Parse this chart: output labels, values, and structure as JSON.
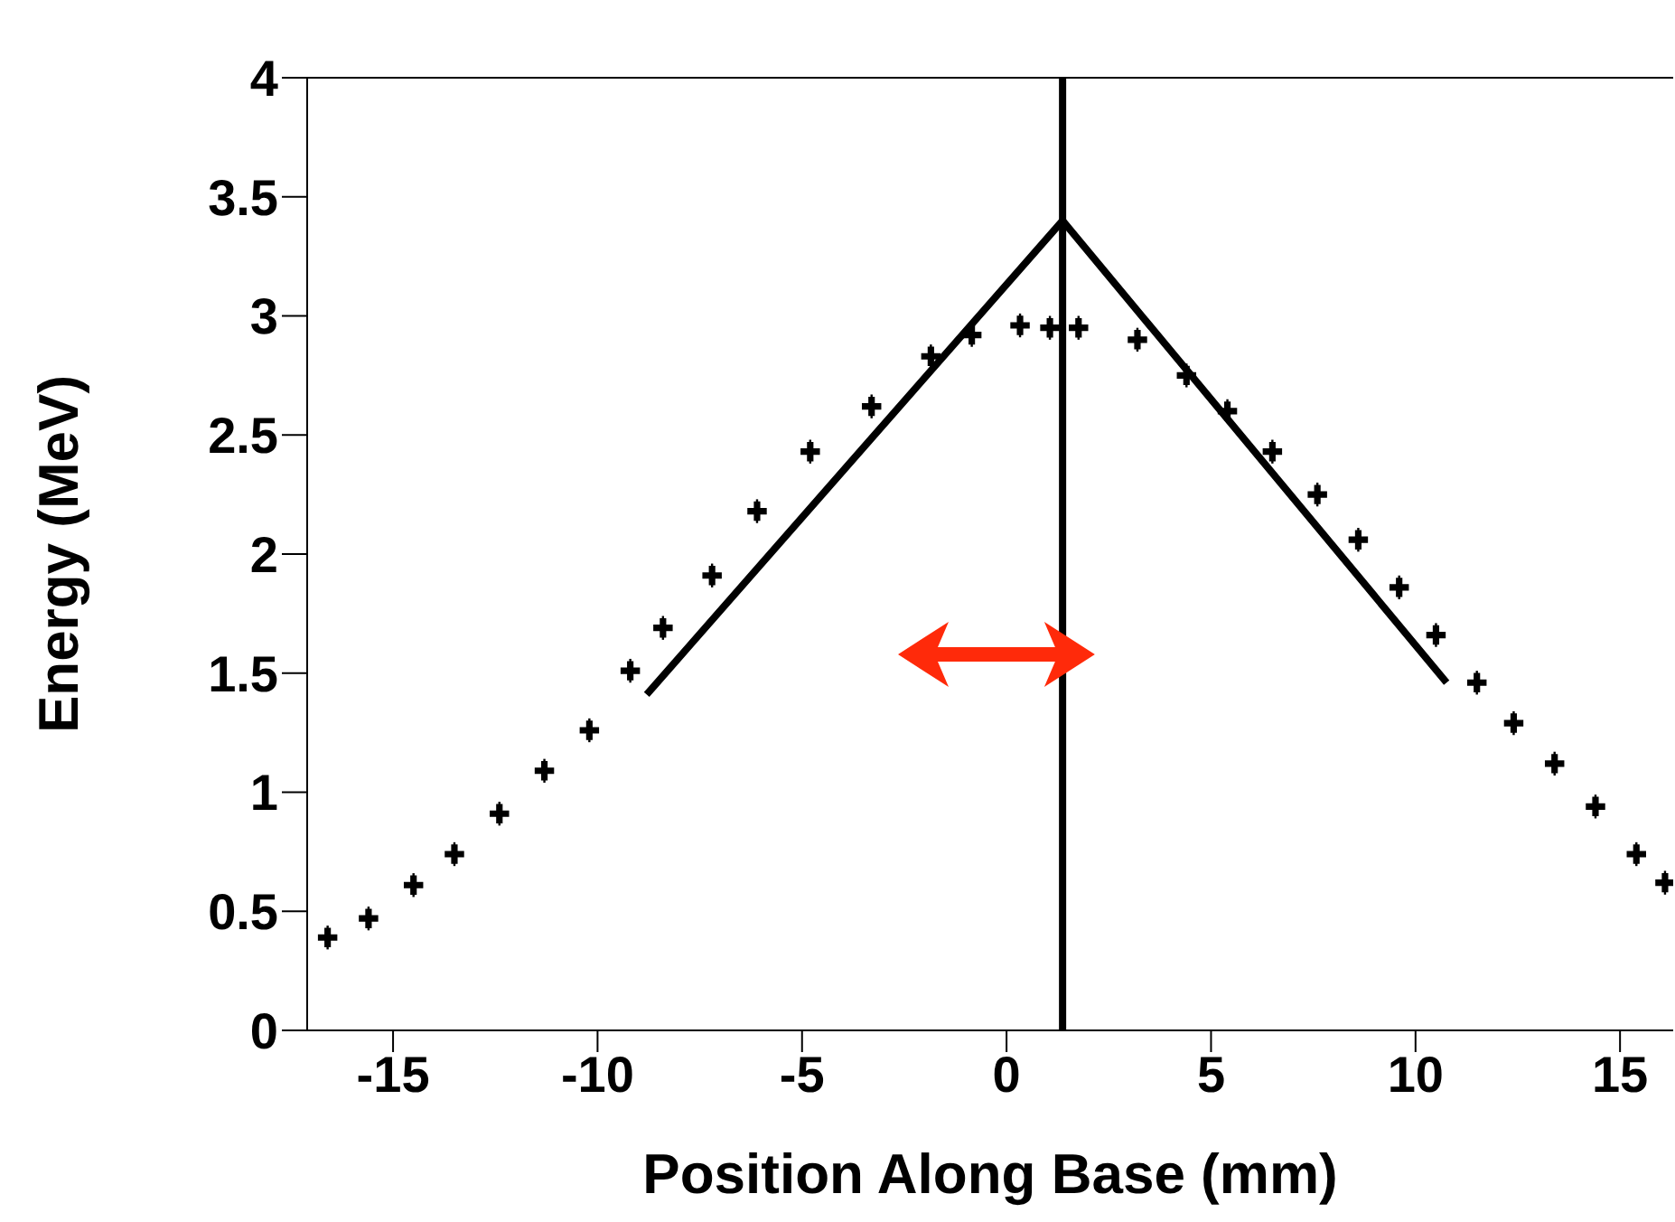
{
  "chart_data": {
    "type": "scatter",
    "xlabel": "Position Along Base (mm)",
    "ylabel": "Energy (MeV)",
    "xlim": [
      -17.1,
      16.3
    ],
    "xticks": [
      -15,
      -10,
      -5,
      0,
      5,
      10,
      15
    ],
    "ylim": [
      0,
      4
    ],
    "yticks": [
      0,
      0.5,
      1,
      1.5,
      2,
      2.5,
      3,
      3.5,
      4
    ],
    "series": [
      {
        "color": "#000000",
        "marker": "cross",
        "x": [
          -16.6,
          -15.6,
          -14.5,
          -13.5,
          -12.4,
          -11.3,
          -10.2,
          -9.2,
          -8.4,
          -7.2,
          -6.1,
          -4.8,
          -3.3,
          -1.85,
          -0.85,
          0.33,
          1.06,
          1.76,
          3.2,
          4.4,
          5.4,
          6.5,
          7.6,
          8.6,
          9.6,
          10.5,
          11.5,
          12.4,
          13.4,
          14.4,
          15.4,
          16.1
        ],
        "values": [
          0.39,
          0.47,
          0.61,
          0.74,
          0.91,
          1.09,
          1.26,
          1.51,
          1.69,
          1.91,
          2.18,
          2.43,
          2.62,
          2.83,
          2.92,
          2.96,
          2.95,
          2.95,
          2.9,
          2.75,
          2.6,
          2.43,
          2.25,
          2.06,
          1.86,
          1.66,
          1.46,
          1.29,
          1.12,
          0.94,
          0.74,
          0.62
        ],
        "errors": [
          0.05,
          0.05,
          0.05,
          0.05,
          0.05,
          0.05,
          0.05,
          0.05,
          0.05,
          0.05,
          0.05,
          0.05,
          0.05,
          0.05,
          0.05,
          0.05,
          0.05,
          0.05,
          0.05,
          0.05,
          0.05,
          0.05,
          0.05,
          0.05,
          0.05,
          0.05,
          0.05,
          0.05,
          0.05,
          0.05,
          0.05,
          0.05
        ]
      },
      {
        "type": "line",
        "color": "#000000",
        "x": [
          -8.8,
          1.37,
          10.76
        ],
        "values": [
          1.41,
          3.4,
          1.46
        ]
      }
    ],
    "ref_lines": [
      {
        "axis": "x",
        "value": 1.37,
        "color": "#000000"
      }
    ]
  }
}
